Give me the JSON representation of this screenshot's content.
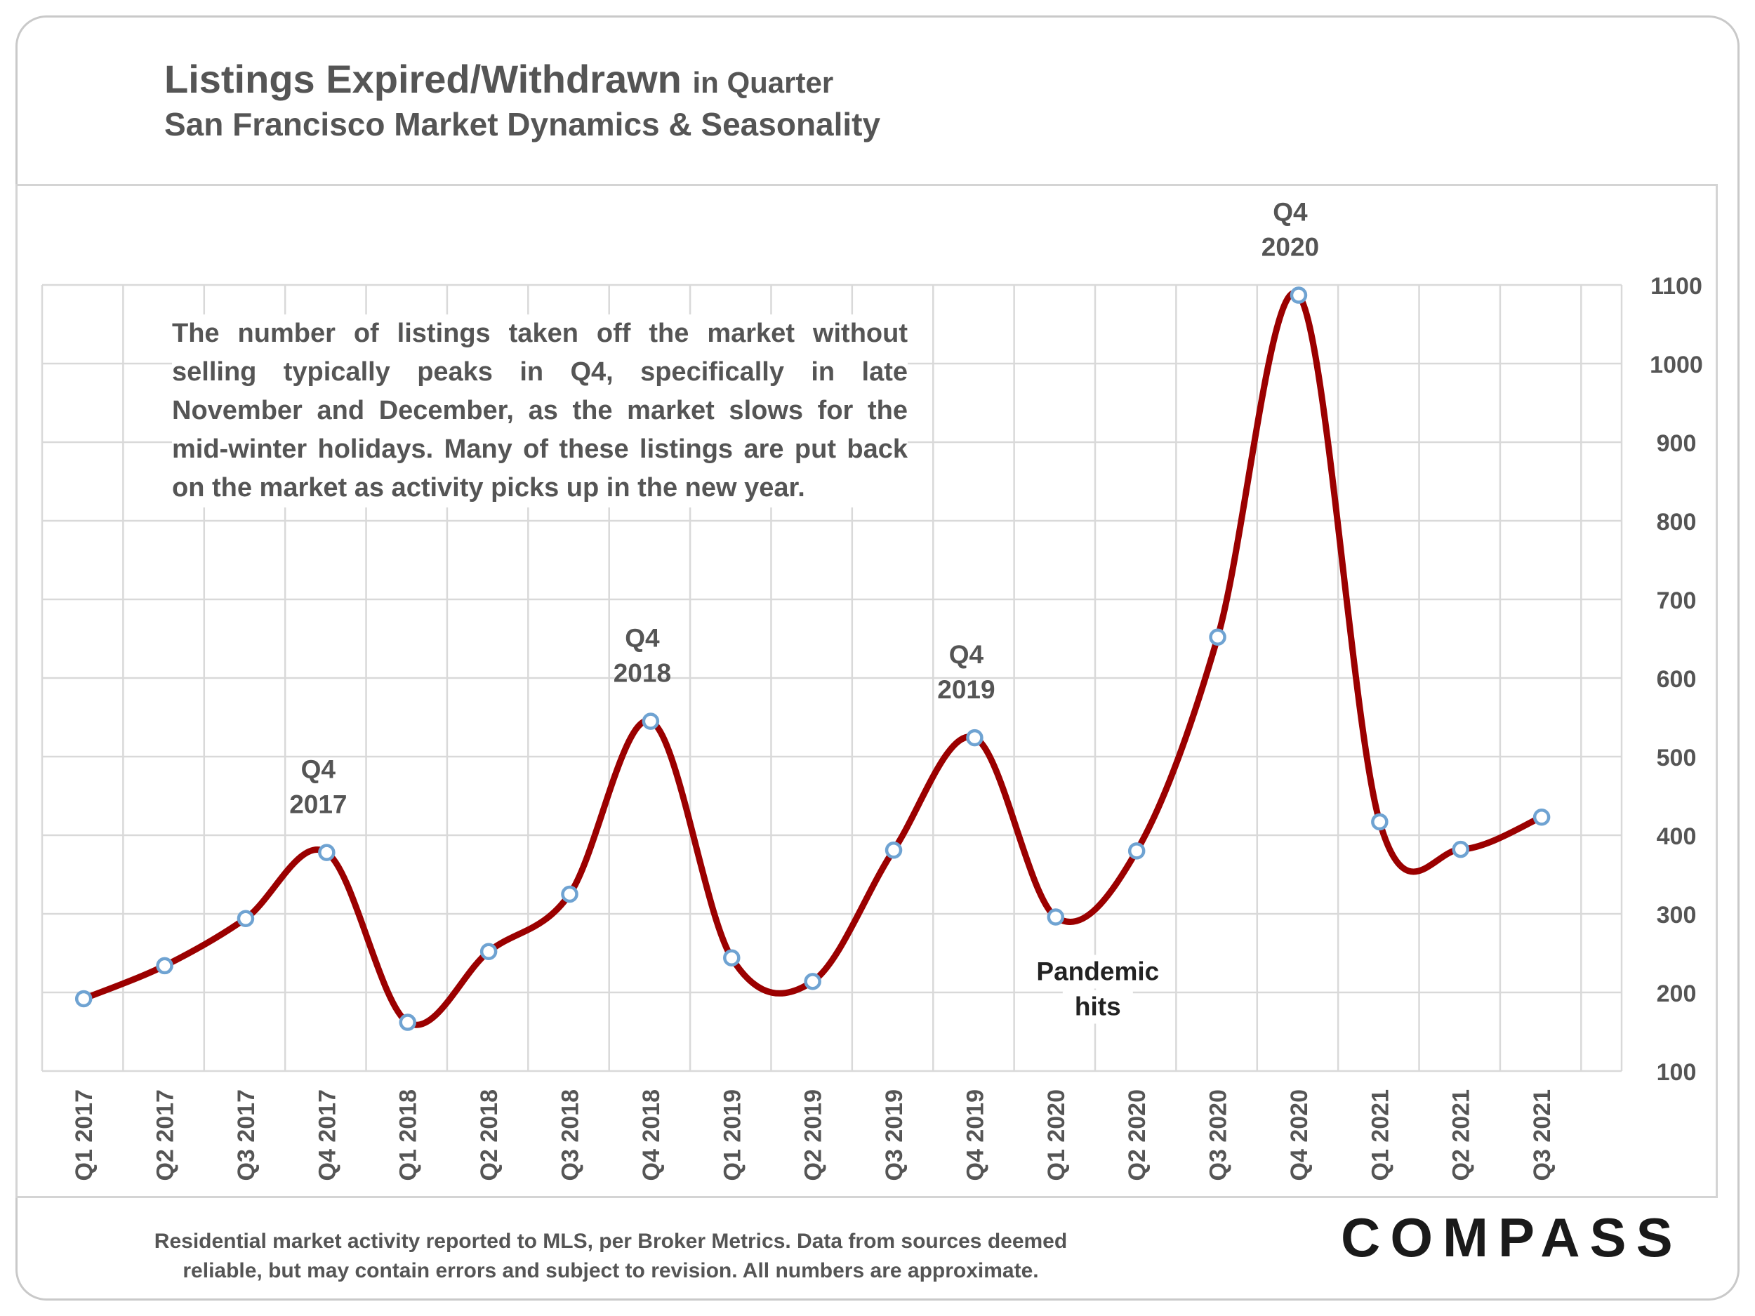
{
  "header": {
    "title": "Listings Expired/Withdrawn",
    "title_suffix": "in Quarter",
    "subtitle": "San Francisco Market Dynamics & Seasonality"
  },
  "annotation": "The number of listings taken off the market without selling typically peaks in Q4, specifically in late November and December, as the market slows for the mid-winter holidays. Many of these listings are put back on the market as activity picks up in the new year.",
  "footer": {
    "note_line1": "Residential market activity reported to MLS, per Broker Metrics. Data from sources deemed",
    "note_line2": "reliable, but may contain errors and subject to revision. All numbers are approximate.",
    "logo": "COMPASS"
  },
  "colors": {
    "line": "#9b0000",
    "marker_fill": "#ffffff",
    "marker_stroke": "#6fa3d2",
    "grid": "#d9d9d9",
    "text": "#555555"
  },
  "chart_data": {
    "type": "line",
    "title": "Listings Expired/Withdrawn in Quarter",
    "categories": [
      "Q1 2017",
      "Q2 2017",
      "Q3 2017",
      "Q4 2017",
      "Q1 2018",
      "Q2 2018",
      "Q3 2018",
      "Q4 2018",
      "Q1 2019",
      "Q2 2019",
      "Q3 2019",
      "Q4 2019",
      "Q1 2020",
      "Q2 2020",
      "Q3 2020",
      "Q4 2020",
      "Q1 2021",
      "Q2 2021",
      "Q3 2021"
    ],
    "series": [
      {
        "name": "Listings Expired/Withdrawn",
        "values": [
          192,
          234,
          294,
          378,
          162,
          252,
          325,
          545,
          244,
          214,
          381,
          524,
          296,
          380,
          652,
          1087,
          417,
          382,
          423
        ]
      }
    ],
    "ylim": [
      100,
      1100
    ],
    "yticks": [
      100,
      200,
      300,
      400,
      500,
      600,
      700,
      800,
      900,
      1000,
      1100
    ],
    "yaxis_side": "right",
    "grid": true,
    "xlabel": "",
    "ylabel": "",
    "annotations": [
      {
        "category": "Q4 2017",
        "lines": [
          "Q4",
          "2017"
        ],
        "position": "above"
      },
      {
        "category": "Q4 2018",
        "lines": [
          "Q4",
          "2018"
        ],
        "position": "above"
      },
      {
        "category": "Q4 2019",
        "lines": [
          "Q4",
          "2019"
        ],
        "position": "above"
      },
      {
        "category": "Q4 2020",
        "lines": [
          "Q4",
          "2020"
        ],
        "position": "above"
      },
      {
        "category": "Q1 2020",
        "lines": [
          "Pandemic",
          "hits"
        ],
        "position": "below"
      }
    ]
  }
}
